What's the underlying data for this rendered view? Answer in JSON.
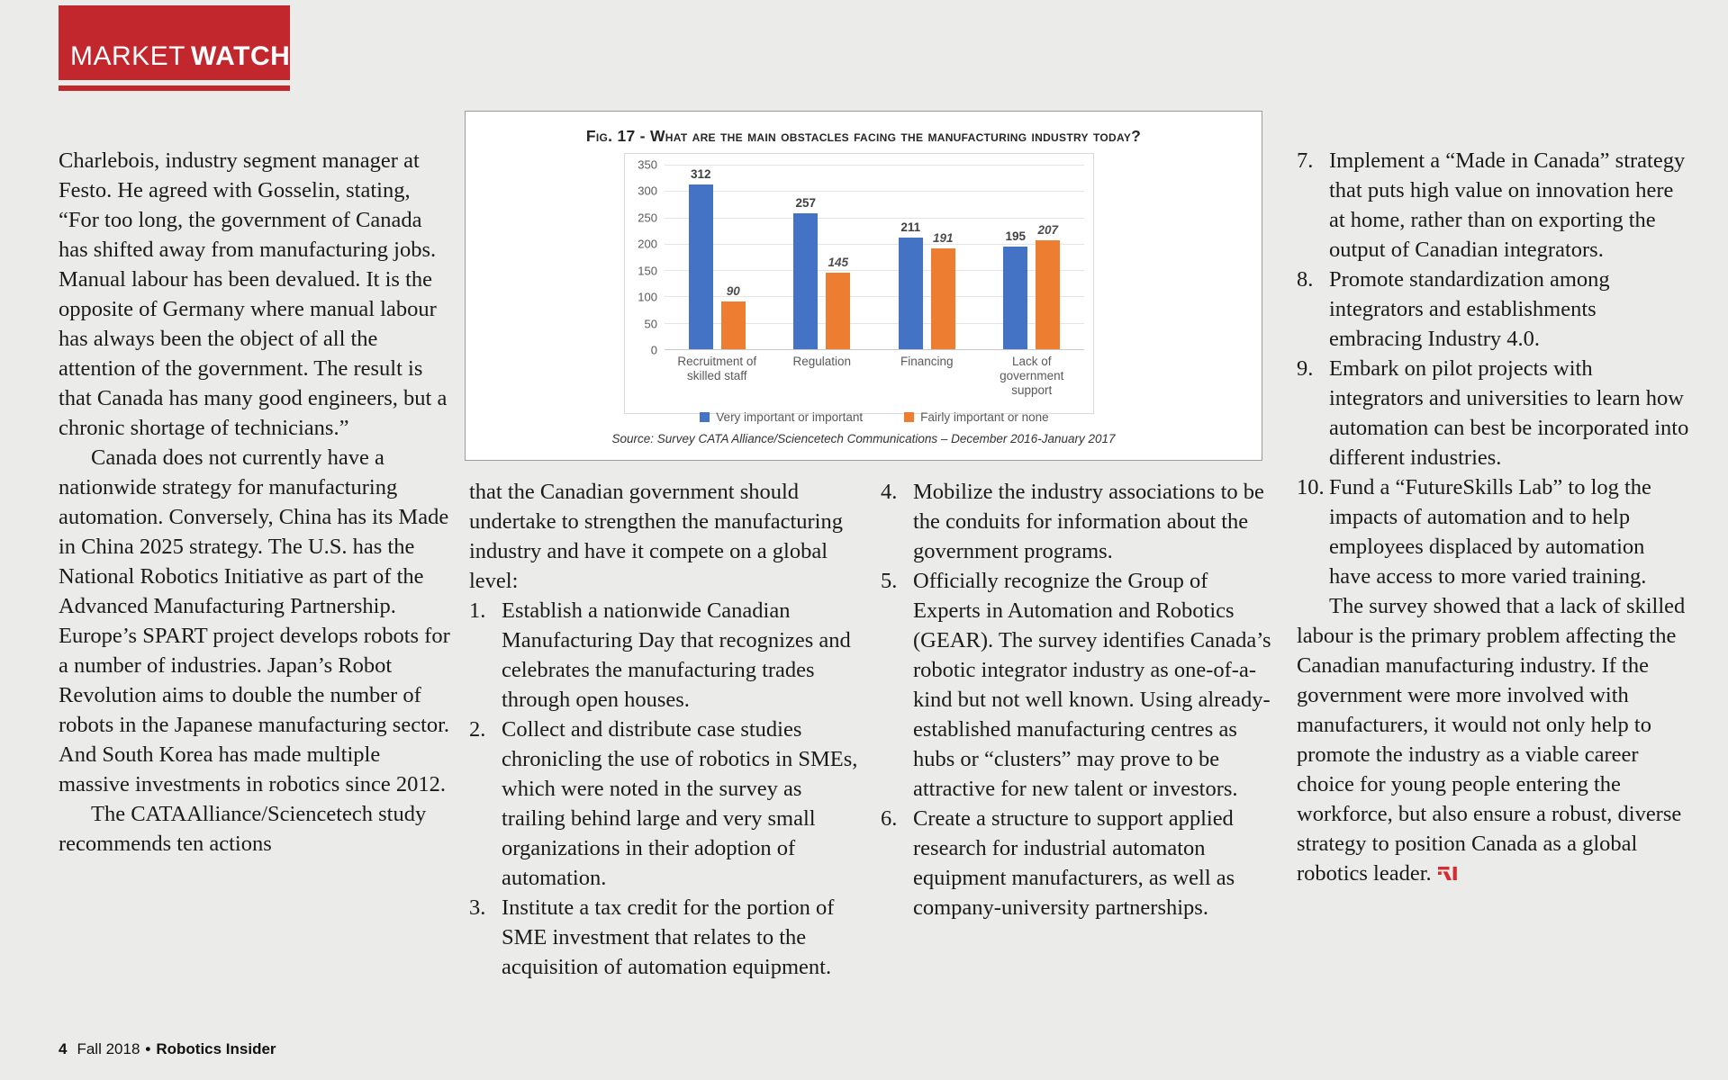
{
  "header": {
    "brand_light": "MARKET",
    "brand_bold": "WATCH",
    "brand_color": "#c2272d"
  },
  "chart_data": {
    "type": "bar",
    "title": "Fig. 17 - What are the main obstacles facing the manufacturing industry today?",
    "categories": [
      "Recruitment of skilled staff",
      "Regulation",
      "Financing",
      "Lack of government support"
    ],
    "series": [
      {
        "name": "Very important or important",
        "color": "#4472c4",
        "values": [
          312,
          257,
          211,
          195
        ]
      },
      {
        "name": "Fairly important or none",
        "color": "#ed7d31",
        "values": [
          90,
          145,
          191,
          207
        ]
      }
    ],
    "ylim": [
      0,
      350
    ],
    "yticks": [
      0,
      50,
      100,
      150,
      200,
      250,
      300,
      350
    ],
    "grid": true,
    "legend_position": "bottom",
    "source": "Source: Survey CATA Alliance/Sciencetech Communications – December 2016-January 2017"
  },
  "article": {
    "col1": {
      "p1": "Charlebois, industry segment manager at Festo. He agreed with Gosselin, stating, “For too long, the government of Canada has shifted away from manufacturing jobs. Manual labour has been devalued. It is the opposite of Germany where manual labour has always been the object of all the attention of the government. The result is that Canada has many good engineers, but a chronic shortage of technicians.”",
      "p2": "Canada does not currently have a nationwide strategy for manufacturing automation. Conversely, China has its Made in China 2025 strategy. The U.S. has the National Robotics Initiative as part of the Advanced Manufacturing Partnership. Europe’s SPART project develops robots for a number of industries. Japan’s Robot Revolution aims to double the number of robots in the Japanese manufacturing sector. And South Korea has made multiple massive investments in robotics since 2012.",
      "p3": "The CATAAlliance/Sciencetech study recommends ten actions"
    },
    "col2": {
      "intro": "that the Canadian government should undertake to strengthen the manufacturing industry and have it compete on a global level:",
      "items": [
        {
          "n": "1.",
          "text": "Establish a nationwide Canadian Manufacturing Day that recognizes and celebrates the manufacturing trades through open houses."
        },
        {
          "n": "2.",
          "text": "Collect and distribute case studies chronicling the use of robotics in SMEs, which were noted in the survey as trailing behind large and very small organizations in their adoption of automation."
        },
        {
          "n": "3.",
          "text": "Institute a tax credit for the portion of SME investment that relates to the acquisition of automation equipment."
        }
      ]
    },
    "col3": {
      "items": [
        {
          "n": "4.",
          "text": "Mobilize the industry associations to be the conduits for information about the government programs."
        },
        {
          "n": "5.",
          "text": "Officially recognize the Group of Experts in Automation and Robotics (GEAR). The survey identifies Canada’s robotic integrator industry as one-of-a-kind but not well known. Using already-established manufacturing centres as hubs or “clusters” may prove to be attractive for new talent or investors."
        },
        {
          "n": "6.",
          "text": "Create a structure to support applied research for industrial automaton equipment manufacturers, as well as company-university partnerships."
        }
      ]
    },
    "col4": {
      "items": [
        {
          "n": "7.",
          "text": "Implement a “Made in Canada” strategy that puts high value on innovation here at home, rather than on exporting the output of Canadian integrators."
        },
        {
          "n": "8.",
          "text": "Promote standardization among integrators and establishments embracing Industry 4.0."
        },
        {
          "n": "9.",
          "text": "Embark on pilot projects with integrators and universities to learn how automation can best be incorporated into different industries."
        },
        {
          "n": "10.",
          "text": "Fund a “FutureSkills Lab” to log the impacts of automation and to help employees displaced by automation have access to more varied training."
        }
      ],
      "closing": "The survey showed that a lack of skilled labour is the primary problem affecting the Canadian manufacturing industry. If the government were more involved with manufacturers, it would not only help to promote the industry as a viable career choice for young people entering the workforce, but also ensure a robust, diverse strategy to position Canada as a global robotics leader."
    }
  },
  "footer": {
    "page_number": "4",
    "issue": "Fall 2018",
    "separator": "•",
    "publication": "Robotics Insider"
  }
}
